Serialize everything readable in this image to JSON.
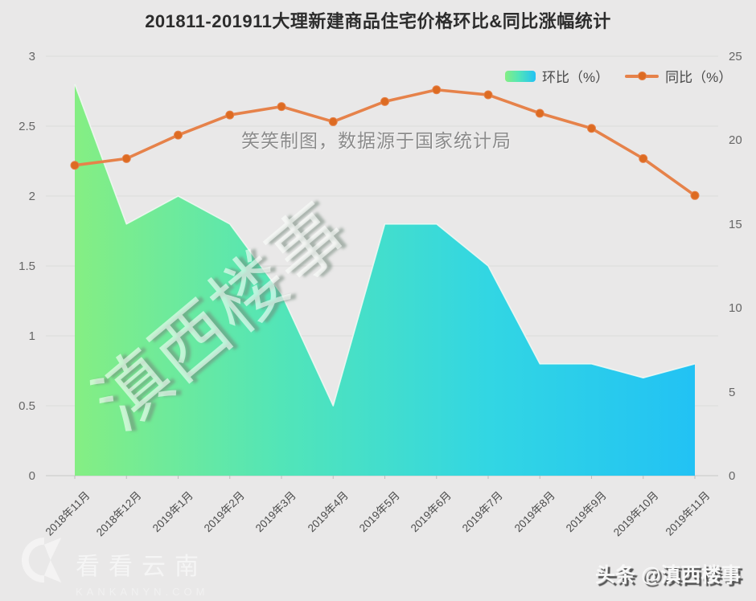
{
  "title": "201811-201911大理新建商品住宅价格环比&同比涨幅统计",
  "legend": {
    "huanbi": "环比（%）",
    "tongbi": "同比（%）"
  },
  "annotation": "笑笑制图，数据源于国家统计局",
  "watermark": "滇西楼事",
  "footer": {
    "logo_text": "看看云南",
    "logo_domain": "KANKANYN.COM",
    "credit": "头条 @滇西楼事"
  },
  "chart_data": {
    "type": "area",
    "subtype": "area + line combo, dual y-axes",
    "title": "201811-201911大理新建商品住宅价格环比&同比涨幅统计",
    "categories": [
      "2018年11月",
      "2018年12月",
      "2019年1月",
      "2019年2月",
      "2019年3月",
      "2019年4月",
      "2019年5月",
      "2019年6月",
      "2019年7月",
      "2019年8月",
      "2019年9月",
      "2019年10月",
      "2019年11月"
    ],
    "series": [
      {
        "name": "环比（%）",
        "type": "area",
        "axis": "left",
        "values": [
          2.8,
          1.8,
          2.0,
          1.8,
          1.3,
          0.5,
          1.8,
          1.8,
          1.5,
          0.8,
          0.8,
          0.7,
          0.8
        ]
      },
      {
        "name": "同比（%）",
        "type": "line",
        "axis": "right",
        "values": [
          18.5,
          18.9,
          20.3,
          21.5,
          22.0,
          21.1,
          22.3,
          23.0,
          22.7,
          21.6,
          20.7,
          18.9,
          16.7
        ]
      }
    ],
    "left_axis": {
      "range": [
        0,
        3
      ],
      "tick_values": [
        0,
        0.5,
        1,
        1.5,
        2,
        2.5,
        3
      ],
      "tick_labels": [
        "0",
        "0.5",
        "1",
        "1.5",
        "2",
        "2.5",
        "3"
      ]
    },
    "right_axis": {
      "range": [
        0,
        25
      ],
      "tick_values": [
        0,
        5,
        10,
        15,
        20,
        25
      ],
      "tick_labels": [
        "0",
        "5",
        "10",
        "15",
        "20",
        "25"
      ]
    },
    "grid": true,
    "legend_position": "top-right",
    "colors": {
      "background": "#e9e8e8",
      "gridline": "#dcdbda",
      "axis_line": "#c8c7c6",
      "area_gradient": [
        "#85ee83",
        "#52e5b8",
        "#32d6e3",
        "#22c2f4"
      ],
      "area_edge": "#f2faf5",
      "line": "#e6824a",
      "dot": "#dd6b22"
    }
  }
}
